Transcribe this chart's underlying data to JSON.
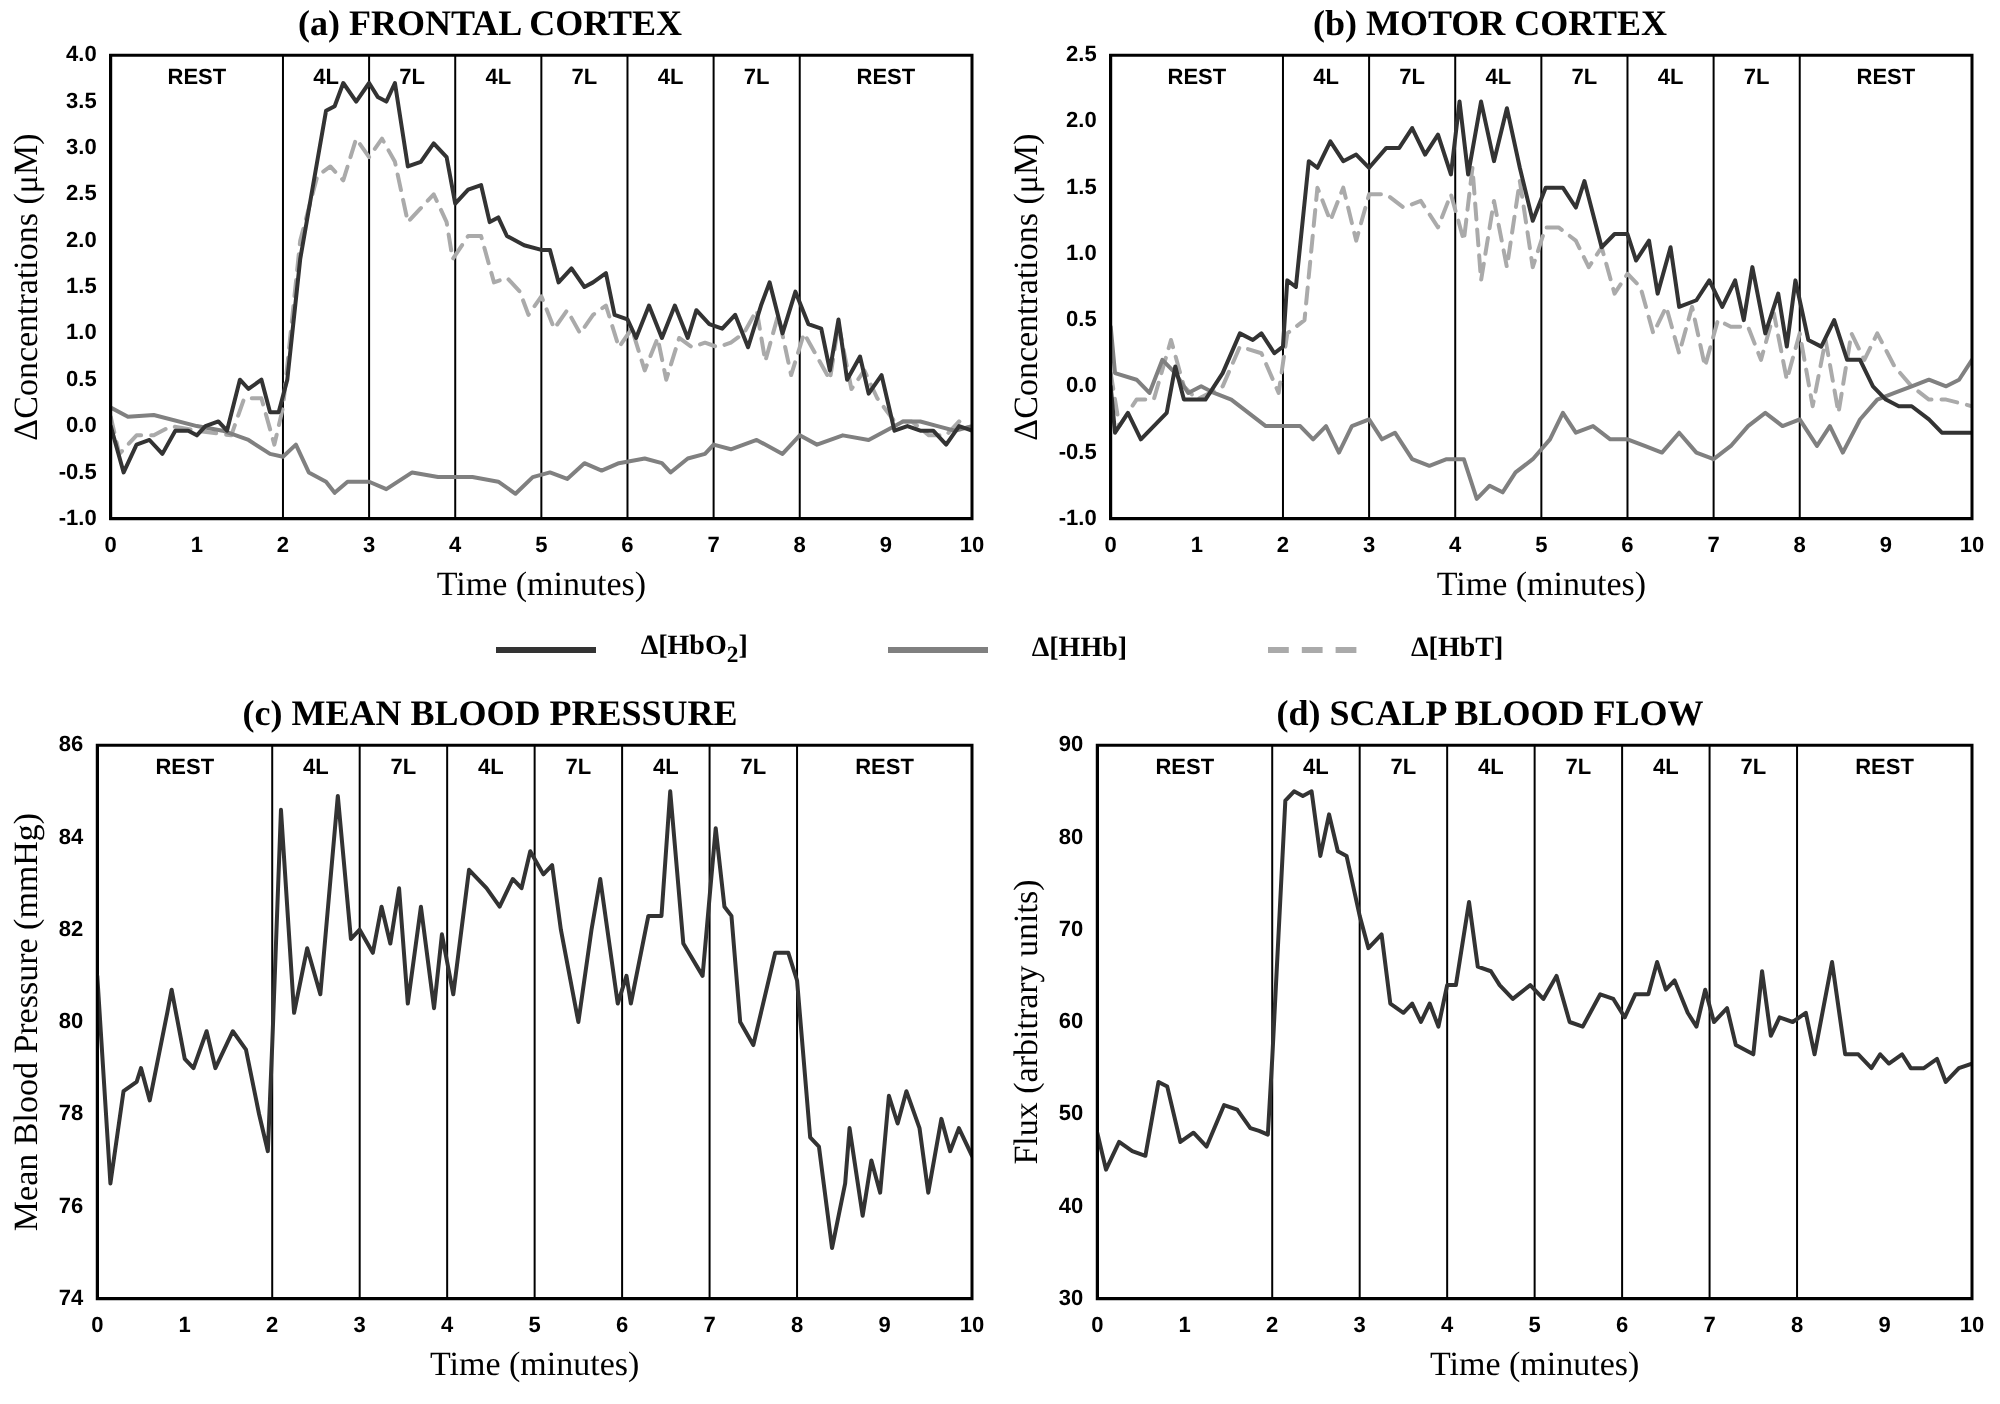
{
  "chart_data": [
    {
      "type": "line",
      "title": "(a) FRONTAL CORTEX",
      "xlabel": "Time (minutes)",
      "ylabel": "ΔConcentrations (μM)",
      "xlim": [
        0,
        10
      ],
      "xticks": [
        0,
        1,
        2,
        3,
        4,
        5,
        6,
        7,
        8,
        9,
        10
      ],
      "ylim": [
        -1,
        4
      ],
      "yticks": [
        {
          "value": -1,
          "label": "-1.0"
        },
        {
          "value": -0.5,
          "label": "-0.5"
        },
        {
          "value": 0,
          "label": "0.0"
        },
        {
          "value": 0.5,
          "label": "0.5"
        },
        {
          "value": 1,
          "label": "1.0"
        },
        {
          "value": 1.5,
          "label": "1.5"
        },
        {
          "value": 2,
          "label": "2.0"
        },
        {
          "value": 2.5,
          "label": "2.5"
        },
        {
          "value": 3,
          "label": "3.0"
        },
        {
          "value": 3.5,
          "label": "3.5"
        },
        {
          "value": 4,
          "label": "4.0"
        }
      ],
      "grid": false,
      "legend": "bottom",
      "ref_lines": [
        {
          "axis": "x",
          "value": 2
        },
        {
          "axis": "x",
          "value": 3
        },
        {
          "axis": "x",
          "value": 4
        },
        {
          "axis": "x",
          "value": 5
        },
        {
          "axis": "x",
          "value": 6
        },
        {
          "axis": "x",
          "value": 7
        },
        {
          "axis": "x",
          "value": 8
        }
      ],
      "annotations": [
        "REST",
        "4L",
        "7L",
        "4L",
        "7L",
        "4L",
        "7L",
        "REST"
      ],
      "series": [
        {
          "name": "Δ[HbO$_{2}$]",
          "color": "#333333",
          "line_style": "solid",
          "x": [
            0,
            0.15,
            0.3,
            0.45,
            0.6,
            0.75,
            0.9,
            1.0,
            1.1,
            1.25,
            1.35,
            1.5,
            1.6,
            1.75,
            1.85,
            1.95,
            2.05,
            2.2,
            2.35,
            2.5,
            2.6,
            2.7,
            2.85,
            3.0,
            3.1,
            3.2,
            3.3,
            3.45,
            3.6,
            3.75,
            3.9,
            4.0,
            4.15,
            4.3,
            4.4,
            4.5,
            4.6,
            4.8,
            5.0,
            5.1,
            5.2,
            5.35,
            5.5,
            5.6,
            5.75,
            5.85,
            6.0,
            6.1,
            6.25,
            6.4,
            6.55,
            6.7,
            6.8,
            6.95,
            7.1,
            7.25,
            7.4,
            7.55,
            7.65,
            7.8,
            7.95,
            8.1,
            8.25,
            8.35,
            8.45,
            8.55,
            8.7,
            8.8,
            8.95,
            9.1,
            9.25,
            9.4,
            9.55,
            9.7,
            9.85,
            10
          ],
          "values": [
            0,
            -0.5,
            -0.2,
            -0.15,
            -0.3,
            -0.05,
            -0.05,
            -0.1,
            0,
            0.05,
            -0.05,
            0.5,
            0.4,
            0.5,
            0.15,
            0.15,
            0.5,
            1.8,
            2.6,
            3.4,
            3.45,
            3.7,
            3.5,
            3.7,
            3.55,
            3.5,
            3.7,
            2.8,
            2.85,
            3.05,
            2.9,
            2.4,
            2.55,
            2.6,
            2.2,
            2.25,
            2.05,
            1.95,
            1.9,
            1.9,
            1.55,
            1.7,
            1.5,
            1.55,
            1.65,
            1.2,
            1.15,
            0.95,
            1.3,
            0.95,
            1.3,
            0.95,
            1.25,
            1.1,
            1.05,
            1.2,
            0.85,
            1.3,
            1.55,
            1,
            1.45,
            1.1,
            1.05,
            0.6,
            1.15,
            0.5,
            0.75,
            0.35,
            0.55,
            -0.05,
            0,
            -0.05,
            -0.05,
            -0.2,
            0,
            -0.05
          ]
        },
        {
          "name": "Δ[HHb]",
          "color": "#808080",
          "line_style": "solid",
          "x": [
            0,
            0.2,
            0.5,
            1.0,
            1.3,
            1.6,
            1.85,
            2.0,
            2.15,
            2.3,
            2.5,
            2.6,
            2.75,
            3.0,
            3.2,
            3.5,
            3.8,
            4.2,
            4.5,
            4.7,
            4.9,
            5.1,
            5.3,
            5.5,
            5.7,
            5.9,
            6.2,
            6.4,
            6.5,
            6.7,
            6.9,
            7.0,
            7.2,
            7.5,
            7.8,
            8.0,
            8.2,
            8.5,
            8.8,
            9.0,
            9.2,
            9.4,
            9.6,
            9.8,
            10
          ],
          "values": [
            0.2,
            0.1,
            0.12,
            0,
            -0.05,
            -0.15,
            -0.3,
            -0.33,
            -0.2,
            -0.5,
            -0.6,
            -0.72,
            -0.6,
            -0.6,
            -0.68,
            -0.5,
            -0.55,
            -0.55,
            -0.6,
            -0.73,
            -0.55,
            -0.5,
            -0.57,
            -0.4,
            -0.48,
            -0.4,
            -0.35,
            -0.4,
            -0.5,
            -0.35,
            -0.3,
            -0.2,
            -0.25,
            -0.15,
            -0.3,
            -0.1,
            -0.2,
            -0.1,
            -0.15,
            -0.05,
            0.05,
            0.05,
            0,
            -0.05,
            0
          ]
        },
        {
          "name": "Δ[HbT]",
          "color": "#aaaaaa",
          "line_style": "dashed",
          "x": [
            0,
            0.1,
            0.3,
            0.5,
            0.7,
            1.0,
            1.4,
            1.55,
            1.75,
            1.9,
            2.0,
            2.2,
            2.4,
            2.55,
            2.7,
            2.85,
            3.0,
            3.15,
            3.3,
            3.45,
            3.6,
            3.75,
            3.9,
            3.97,
            4.15,
            4.3,
            4.45,
            4.6,
            4.75,
            4.85,
            5.0,
            5.15,
            5.3,
            5.45,
            5.6,
            5.75,
            5.9,
            6.05,
            6.2,
            6.35,
            6.45,
            6.6,
            6.75,
            6.9,
            7.05,
            7.2,
            7.35,
            7.5,
            7.6,
            7.75,
            7.9,
            8.05,
            8.2,
            8.35,
            8.45,
            8.6,
            8.75,
            8.9,
            9.1,
            9.3,
            9.5,
            9.7,
            9.85,
            10
          ],
          "values": [
            0.1,
            -0.3,
            -0.1,
            -0.1,
            0,
            -0.05,
            -0.1,
            0.3,
            0.3,
            -0.2,
            0.2,
            2,
            2.7,
            2.8,
            2.65,
            3.1,
            2.9,
            3.1,
            2.85,
            2.2,
            2.35,
            2.5,
            2.2,
            1.8,
            2.05,
            2.05,
            1.55,
            1.6,
            1.45,
            1.2,
            1.4,
            1.05,
            1.25,
            1,
            1.2,
            1.3,
            0.85,
            1.05,
            0.6,
            0.95,
            0.5,
            0.95,
            0.85,
            0.9,
            0.85,
            0.9,
            1,
            1.25,
            0.7,
            1.2,
            0.55,
            1,
            0.75,
            0.5,
            1.1,
            0.4,
            0.6,
            0.3,
            0.05,
            0.05,
            -0.1,
            -0.1,
            0.05,
            -0.05
          ]
        }
      ]
    },
    {
      "type": "line",
      "title": "(b) MOTOR CORTEX",
      "xlabel": "Time (minutes)",
      "ylabel": "ΔConcentrations (μM)",
      "xlim": [
        0,
        10
      ],
      "xticks": [
        0,
        1,
        2,
        3,
        4,
        5,
        6,
        7,
        8,
        9,
        10
      ],
      "ylim": [
        -1,
        2.5
      ],
      "yticks": [
        {
          "value": -1,
          "label": "-1.0"
        },
        {
          "value": -0.5,
          "label": "-0.5"
        },
        {
          "value": 0,
          "label": "0.0"
        },
        {
          "value": 0.5,
          "label": "0.5"
        },
        {
          "value": 1,
          "label": "1.0"
        },
        {
          "value": 1.5,
          "label": "1.5"
        },
        {
          "value": 2,
          "label": "2.0"
        },
        {
          "value": 2.5,
          "label": "2.5"
        }
      ],
      "grid": false,
      "ref_lines": [
        {
          "axis": "x",
          "value": 2
        },
        {
          "axis": "x",
          "value": 3
        },
        {
          "axis": "x",
          "value": 4
        },
        {
          "axis": "x",
          "value": 5
        },
        {
          "axis": "x",
          "value": 6
        },
        {
          "axis": "x",
          "value": 7
        },
        {
          "axis": "x",
          "value": 8
        }
      ],
      "annotations": [
        "REST",
        "4L",
        "7L",
        "4L",
        "7L",
        "4L",
        "7L",
        "REST"
      ],
      "series": [
        {
          "color": "#333333",
          "line_style": "solid",
          "x": [
            0,
            0.05,
            0.2,
            0.35,
            0.5,
            0.65,
            0.75,
            0.85,
            1.0,
            1.1,
            1.3,
            1.5,
            1.65,
            1.75,
            1.9,
            2.0,
            2.05,
            2.15,
            2.3,
            2.4,
            2.55,
            2.7,
            2.85,
            3.0,
            3.2,
            3.35,
            3.5,
            3.65,
            3.8,
            3.95,
            4.05,
            4.15,
            4.3,
            4.45,
            4.6,
            4.75,
            4.9,
            5.05,
            5.25,
            5.4,
            5.5,
            5.7,
            5.85,
            6.0,
            6.1,
            6.25,
            6.35,
            6.5,
            6.6,
            6.8,
            6.95,
            7.1,
            7.25,
            7.35,
            7.45,
            7.6,
            7.75,
            7.85,
            7.95,
            8.1,
            8.25,
            8.4,
            8.55,
            8.7,
            8.85,
            9.0,
            9.15,
            9.3,
            9.5,
            9.65,
            10
          ],
          "values": [
            0,
            -0.35,
            -0.2,
            -0.4,
            -0.3,
            -0.2,
            0.15,
            -0.1,
            -0.1,
            -0.1,
            0.1,
            0.4,
            0.35,
            0.4,
            0.25,
            0.3,
            0.8,
            0.75,
            1.7,
            1.65,
            1.85,
            1.7,
            1.75,
            1.65,
            1.8,
            1.8,
            1.95,
            1.75,
            1.9,
            1.6,
            2.15,
            1.6,
            2.15,
            1.7,
            2.1,
            1.65,
            1.25,
            1.5,
            1.5,
            1.35,
            1.55,
            1.05,
            1.15,
            1.15,
            0.95,
            1.1,
            0.7,
            1.05,
            0.6,
            0.65,
            0.8,
            0.6,
            0.8,
            0.5,
            0.9,
            0.4,
            0.7,
            0.3,
            0.8,
            0.35,
            0.3,
            0.5,
            0.2,
            0.2,
            0,
            -0.1,
            -0.15,
            -0.15,
            -0.25,
            -0.35,
            -0.35
          ]
        },
        {
          "color": "#808080",
          "line_style": "solid",
          "x": [
            0,
            0.05,
            0.3,
            0.45,
            0.6,
            0.75,
            0.9,
            1.05,
            1.2,
            1.4,
            1.6,
            1.8,
            2.0,
            2.2,
            2.35,
            2.5,
            2.65,
            2.8,
            3.0,
            3.15,
            3.3,
            3.5,
            3.7,
            3.9,
            4.1,
            4.25,
            4.4,
            4.55,
            4.7,
            4.9,
            5.1,
            5.25,
            5.4,
            5.6,
            5.8,
            6.0,
            6.2,
            6.4,
            6.6,
            6.8,
            7.0,
            7.2,
            7.4,
            7.6,
            7.8,
            8.0,
            8.2,
            8.35,
            8.5,
            8.7,
            8.9,
            9.1,
            9.3,
            9.5,
            9.7,
            9.85,
            10
          ],
          "values": [
            0.45,
            0.1,
            0.05,
            -0.05,
            0.2,
            0.1,
            -0.05,
            0,
            -0.05,
            -0.1,
            -0.2,
            -0.3,
            -0.3,
            -0.3,
            -0.4,
            -0.3,
            -0.5,
            -0.3,
            -0.25,
            -0.4,
            -0.35,
            -0.55,
            -0.6,
            -0.55,
            -0.55,
            -0.85,
            -0.75,
            -0.8,
            -0.65,
            -0.55,
            -0.4,
            -0.2,
            -0.35,
            -0.3,
            -0.4,
            -0.4,
            -0.45,
            -0.5,
            -0.35,
            -0.5,
            -0.55,
            -0.45,
            -0.3,
            -0.2,
            -0.3,
            -0.25,
            -0.45,
            -0.3,
            -0.5,
            -0.25,
            -0.1,
            -0.05,
            0,
            0.05,
            0,
            0.05,
            0.2
          ]
        },
        {
          "color": "#aaaaaa",
          "line_style": "dashed",
          "x": [
            0,
            0.1,
            0.3,
            0.5,
            0.7,
            0.85,
            1.0,
            1.3,
            1.5,
            1.75,
            1.95,
            2.05,
            2.25,
            2.4,
            2.55,
            2.7,
            2.85,
            3.0,
            3.2,
            3.4,
            3.6,
            3.8,
            3.95,
            4.1,
            4.2,
            4.3,
            4.45,
            4.6,
            4.75,
            4.9,
            5.05,
            5.2,
            5.4,
            5.55,
            5.7,
            5.85,
            6.0,
            6.15,
            6.3,
            6.45,
            6.6,
            6.75,
            6.9,
            7.05,
            7.2,
            7.4,
            7.55,
            7.7,
            7.85,
            8.0,
            8.15,
            8.3,
            8.45,
            8.6,
            8.75,
            8.9,
            9.1,
            9.3,
            9.5,
            9.7,
            10
          ],
          "values": [
            0.1,
            -0.3,
            -0.1,
            -0.1,
            0.35,
            0,
            -0.1,
            0,
            0.3,
            0.25,
            -0.05,
            0.4,
            0.5,
            1.5,
            1.25,
            1.5,
            1.1,
            1.45,
            1.45,
            1.35,
            1.4,
            1.2,
            1.45,
            1.1,
            1.65,
            0.8,
            1.4,
            0.9,
            1.55,
            0.9,
            1.2,
            1.2,
            1.1,
            0.9,
            1.05,
            0.7,
            0.85,
            0.75,
            0.4,
            0.6,
            0.25,
            0.6,
            0.15,
            0.5,
            0.45,
            0.45,
            0.2,
            0.55,
            0.05,
            0.4,
            -0.15,
            0.35,
            -0.2,
            0.4,
            0.2,
            0.4,
            0.15,
            0,
            -0.1,
            -0.1,
            -0.15
          ]
        }
      ]
    },
    {
      "type": "line",
      "title": "(c) MEAN BLOOD PRESSURE",
      "xlabel": "Time (minutes)",
      "ylabel": "Mean Blood Pressure (mmHg)",
      "xlim": [
        0,
        10
      ],
      "xticks": [
        0,
        1,
        2,
        3,
        4,
        5,
        6,
        7,
        8,
        9,
        10
      ],
      "ylim": [
        74,
        86
      ],
      "yticks": [
        74,
        76,
        78,
        80,
        82,
        84,
        86
      ],
      "grid": false,
      "ref_lines": [
        {
          "axis": "x",
          "value": 2
        },
        {
          "axis": "x",
          "value": 3
        },
        {
          "axis": "x",
          "value": 4
        },
        {
          "axis": "x",
          "value": 5
        },
        {
          "axis": "x",
          "value": 6
        },
        {
          "axis": "x",
          "value": 7
        },
        {
          "axis": "x",
          "value": 8
        }
      ],
      "annotations": [
        "REST",
        "4L",
        "7L",
        "4L",
        "7L",
        "4L",
        "7L",
        "REST"
      ],
      "series": [
        {
          "color": "#333333",
          "line_style": "solid",
          "x": [
            0,
            0.15,
            0.3,
            0.45,
            0.5,
            0.6,
            0.8,
            0.85,
            1.0,
            1.1,
            1.25,
            1.35,
            1.55,
            1.7,
            1.85,
            1.95,
            2.0,
            2.1,
            2.25,
            2.4,
            2.55,
            2.75,
            2.9,
            3.0,
            3.15,
            3.25,
            3.35,
            3.45,
            3.55,
            3.7,
            3.85,
            3.94,
            4.07,
            4.25,
            4.45,
            4.6,
            4.75,
            4.85,
            4.95,
            5.1,
            5.2,
            5.3,
            5.5,
            5.65,
            5.75,
            5.95,
            6.05,
            6.1,
            6.3,
            6.45,
            6.55,
            6.7,
            6.92,
            7.07,
            7.17,
            7.25,
            7.35,
            7.5,
            7.75,
            7.9,
            8.0,
            8.15,
            8.25,
            8.4,
            8.55,
            8.6,
            8.75,
            8.85,
            8.95,
            9.05,
            9.15,
            9.25,
            9.4,
            9.5,
            9.65,
            9.75,
            9.85,
            10
          ],
          "values": [
            81,
            76.5,
            78.5,
            78.7,
            79,
            78.3,
            80.2,
            80.7,
            79.2,
            79,
            79.8,
            79,
            79.8,
            79.4,
            78,
            77.2,
            79.5,
            84.6,
            80.2,
            81.6,
            80.6,
            84.9,
            81.8,
            82,
            81.5,
            82.5,
            81.7,
            82.9,
            80.4,
            82.5,
            80.3,
            81.9,
            80.6,
            83.3,
            82.9,
            82.5,
            83.1,
            82.9,
            83.7,
            83.2,
            83.4,
            82,
            80,
            82,
            83.1,
            80.4,
            81,
            80.4,
            82.3,
            82.3,
            85,
            81.7,
            81,
            84.2,
            82.5,
            82.3,
            80,
            79.5,
            81.5,
            81.5,
            80.9,
            77.5,
            77.3,
            75.1,
            76.5,
            77.7,
            75.8,
            77,
            76.3,
            78.4,
            77.8,
            78.5,
            77.7,
            76.3,
            77.9,
            77.2,
            77.7,
            77.1
          ]
        }
      ]
    },
    {
      "type": "line",
      "title": "(d) SCALP BLOOD FLOW",
      "xlabel": "Time (minutes)",
      "ylabel": "Flux (arbitrary units)",
      "xlim": [
        0,
        10
      ],
      "xticks": [
        0,
        1,
        2,
        3,
        4,
        5,
        6,
        7,
        8,
        9,
        10
      ],
      "ylim": [
        30,
        90
      ],
      "yticks": [
        30,
        40,
        50,
        60,
        70,
        80,
        90
      ],
      "grid": false,
      "ref_lines": [
        {
          "axis": "x",
          "value": 2
        },
        {
          "axis": "x",
          "value": 3
        },
        {
          "axis": "x",
          "value": 4
        },
        {
          "axis": "x",
          "value": 5
        },
        {
          "axis": "x",
          "value": 6
        },
        {
          "axis": "x",
          "value": 7
        },
        {
          "axis": "x",
          "value": 8
        }
      ],
      "annotations": [
        "REST",
        "4L",
        "7L",
        "4L",
        "7L",
        "4L",
        "7L",
        "REST"
      ],
      "series": [
        {
          "color": "#333333",
          "line_style": "solid",
          "x": [
            0,
            0.1,
            0.25,
            0.4,
            0.55,
            0.7,
            0.8,
            0.95,
            1.1,
            1.25,
            1.45,
            1.6,
            1.75,
            1.85,
            1.95,
            2.0,
            2.15,
            2.25,
            2.35,
            2.45,
            2.55,
            2.65,
            2.75,
            2.85,
            3.0,
            3.1,
            3.25,
            3.35,
            3.5,
            3.6,
            3.7,
            3.8,
            3.9,
            4.0,
            4.1,
            4.25,
            4.35,
            4.5,
            4.6,
            4.75,
            4.95,
            5.1,
            5.25,
            5.4,
            5.55,
            5.75,
            5.9,
            6.03,
            6.15,
            6.3,
            6.4,
            6.5,
            6.6,
            6.75,
            6.85,
            6.95,
            7.05,
            7.2,
            7.3,
            7.5,
            7.6,
            7.7,
            7.8,
            7.95,
            8.1,
            8.2,
            8.4,
            8.55,
            8.7,
            8.85,
            8.95,
            9.05,
            9.2,
            9.3,
            9.45,
            9.6,
            9.7,
            9.85,
            10
          ],
          "values": [
            48,
            44,
            47,
            46,
            45.5,
            53.5,
            53,
            47,
            48,
            46.5,
            51,
            50.5,
            48.5,
            48.2,
            47.8,
            56,
            84,
            85,
            84.5,
            85,
            78,
            82.5,
            78.5,
            78,
            71.5,
            68,
            69.5,
            62,
            61,
            62,
            60,
            62,
            59.5,
            64,
            64,
            73,
            66,
            65.5,
            64,
            62.5,
            64,
            62.5,
            65,
            60,
            59.5,
            63,
            62.5,
            60.5,
            63,
            63,
            66.5,
            63.5,
            64.5,
            61,
            59.5,
            63.5,
            60,
            61.5,
            57.5,
            56.5,
            65.5,
            58.5,
            60.5,
            60,
            61,
            56.5,
            66.5,
            56.5,
            56.5,
            55,
            56.5,
            55.5,
            56.5,
            55,
            55,
            56,
            53.5,
            55,
            55.5
          ]
        }
      ]
    }
  ]
}
